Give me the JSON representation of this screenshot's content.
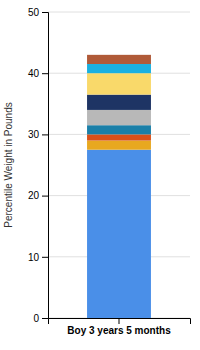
{
  "chart_data": {
    "type": "bar",
    "stacked": true,
    "categories": [
      "Boy 3 years 5 months"
    ],
    "series": [
      {
        "color": "#4a8fe8",
        "values": [
          27.5
        ]
      },
      {
        "color": "#e8a820",
        "values": [
          1.5
        ]
      },
      {
        "color": "#d9501a",
        "values": [
          1.0
        ]
      },
      {
        "color": "#1a7fa8",
        "values": [
          1.5
        ]
      },
      {
        "color": "#b8b8b8",
        "values": [
          2.5
        ]
      },
      {
        "color": "#1e3464",
        "values": [
          2.5
        ]
      },
      {
        "color": "#f9d96a",
        "values": [
          3.5
        ]
      },
      {
        "color": "#1ab0e0",
        "values": [
          1.5
        ]
      },
      {
        "color": "#b05a38",
        "values": [
          1.5
        ]
      }
    ],
    "ylabel": "Percentile Weight in Pounds",
    "ylim": [
      0,
      50
    ],
    "yticks": [
      0,
      10,
      20,
      30,
      40,
      50
    ],
    "grid": true
  }
}
